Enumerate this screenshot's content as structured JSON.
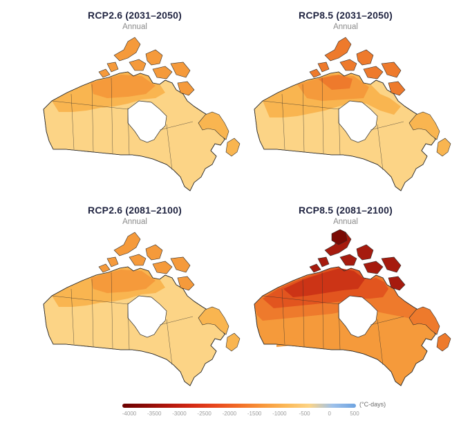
{
  "panels": [
    {
      "title": "RCP2.6 (2031–2050)",
      "subtitle": "Annual",
      "scenario": "rcp26-mid"
    },
    {
      "title": "RCP8.5 (2031–2050)",
      "subtitle": "Annual",
      "scenario": "rcp85-mid"
    },
    {
      "title": "RCP2.6 (2081–2100)",
      "subtitle": "Annual",
      "scenario": "rcp26-late"
    },
    {
      "title": "RCP8.5 (2081–2100)",
      "subtitle": "Annual",
      "scenario": "rcp85-late"
    }
  ],
  "legend": {
    "unit": "(°C-days)",
    "ticks": [
      "-4000",
      "-3500",
      "-3000",
      "-2500",
      "-2000",
      "-1500",
      "-1000",
      "-500",
      "0",
      "500"
    ],
    "colors": [
      "#6b0000",
      "#8b0a06",
      "#b3160c",
      "#d42a14",
      "#e8481e",
      "#f26d27",
      "#f8963a",
      "#fbb857",
      "#fcd486",
      "#9ec1ea",
      "#6ea3e0"
    ]
  },
  "palette": {
    "light": "#fcd486",
    "pale": "#fbc96e",
    "mid": "#f9b550",
    "orange": "#f59a3b",
    "deep": "#ee7a2c",
    "red1": "#e2551f",
    "red2": "#cc3416",
    "red3": "#a61b0e",
    "red4": "#7a0a04",
    "ocean": "#ffffff",
    "border": "#2b2b2b",
    "water": "#ffffff"
  }
}
